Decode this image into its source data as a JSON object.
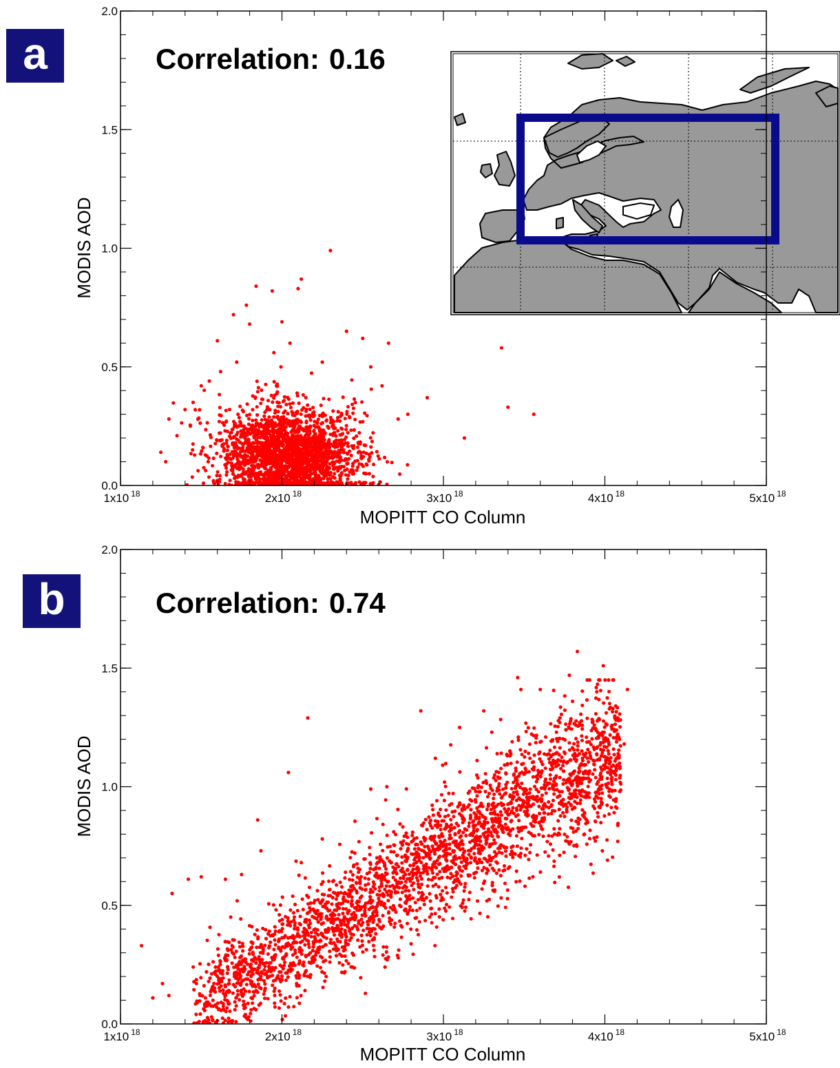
{
  "colors": {
    "points": "#ff0000",
    "label_bg": "#12127a",
    "land": "#999999",
    "region_box": "#0a0a8c"
  },
  "chart_data": [
    {
      "panel": "a",
      "type": "scatter",
      "panel_label": "a",
      "annotation_label": "Correlation:",
      "annotation_value": "0.16",
      "correlation": 0.16,
      "xlabel": "MOPITT CO Column",
      "ylabel": "MODIS AOD",
      "xlim": [
        1e+18,
        5e+18
      ],
      "ylim": [
        0.0,
        2.0
      ],
      "x_ticks": [
        {
          "value": 1e+18,
          "mantissa": "1x10",
          "exp": "18"
        },
        {
          "value": 2e+18,
          "mantissa": "2x10",
          "exp": "18"
        },
        {
          "value": 3e+18,
          "mantissa": "3x10",
          "exp": "18"
        },
        {
          "value": 4e+18,
          "mantissa": "4x10",
          "exp": "18"
        },
        {
          "value": 5e+18,
          "mantissa": "5x10",
          "exp": "18"
        }
      ],
      "y_ticks": [
        "0.0",
        "0.5",
        "1.0",
        "1.5",
        "2.0"
      ],
      "inset_map": {
        "description_region": "Europe",
        "region_box": true
      },
      "points": [
        [
          2.3e+18,
          0.99
        ],
        [
          1.84e+18,
          0.84
        ],
        [
          2.12e+18,
          0.87
        ],
        [
          1.94e+18,
          0.82
        ],
        [
          2.1e+18,
          0.83
        ],
        [
          1.7e+18,
          0.72
        ],
        [
          1.8e+18,
          0.68
        ],
        [
          1.78e+18,
          0.76
        ],
        [
          2e+18,
          0.69
        ],
        [
          1.6e+18,
          0.61
        ],
        [
          2.66e+18,
          0.6
        ],
        [
          3.36e+18,
          0.58
        ],
        [
          2.5e+18,
          0.62
        ],
        [
          2.05e+18,
          0.6
        ],
        [
          2.4e+18,
          0.65
        ],
        [
          1.55e+18,
          0.44
        ],
        [
          1.62e+18,
          0.48
        ],
        [
          1.72e+18,
          0.52
        ],
        [
          1.95e+18,
          0.56
        ],
        [
          2.25e+18,
          0.52
        ],
        [
          2.55e+18,
          0.5
        ],
        [
          2.62e+18,
          0.42
        ],
        [
          2.9e+18,
          0.37
        ],
        [
          3.4e+18,
          0.33
        ],
        [
          3.56e+18,
          0.3
        ],
        [
          3.13e+18,
          0.2
        ],
        [
          2.78e+18,
          0.3
        ],
        [
          2.72e+18,
          0.28
        ],
        [
          1.25e+18,
          0.14
        ],
        [
          1.28e+18,
          0.1
        ],
        [
          1.3e+18,
          0.28
        ],
        [
          1.35e+18,
          0.21
        ],
        [
          1.4e+18,
          0.32
        ],
        [
          1.45e+18,
          0.35
        ],
        [
          1.5e+18,
          0.42
        ]
      ],
      "cluster": {
        "center": [
          2.05e+18,
          0.13
        ],
        "spread": [
          2.2e+17,
          0.11
        ],
        "count": 2300,
        "seed": 7
      }
    },
    {
      "panel": "b",
      "type": "scatter",
      "panel_label": "b",
      "annotation_label": "Correlation:",
      "annotation_value": "0.74",
      "correlation": 0.74,
      "xlabel": "MOPITT CO Column",
      "ylabel": "MODIS AOD",
      "xlim": [
        1e+18,
        5e+18
      ],
      "ylim": [
        0.0,
        2.0
      ],
      "x_ticks": [
        {
          "value": 1e+18,
          "mantissa": "1x10",
          "exp": "18"
        },
        {
          "value": 2e+18,
          "mantissa": "2x10",
          "exp": "18"
        },
        {
          "value": 3e+18,
          "mantissa": "3x10",
          "exp": "18"
        },
        {
          "value": 4e+18,
          "mantissa": "4x10",
          "exp": "18"
        },
        {
          "value": 5e+18,
          "mantissa": "5x10",
          "exp": "18"
        }
      ],
      "y_ticks": [
        "0.0",
        "0.5",
        "1.0",
        "1.5",
        "2.0"
      ],
      "points": [
        [
          3.83e+18,
          1.57
        ],
        [
          3.99e+18,
          1.51
        ],
        [
          3.78e+18,
          1.47
        ],
        [
          3.46e+18,
          1.46
        ],
        [
          4.14e+18,
          1.41
        ],
        [
          3.48e+18,
          1.41
        ],
        [
          3.6e+18,
          1.41
        ],
        [
          3.8e+18,
          1.36
        ],
        [
          2.86e+18,
          1.32
        ],
        [
          3.25e+18,
          1.32
        ],
        [
          4.05e+18,
          1.33
        ],
        [
          2.16e+18,
          1.29
        ],
        [
          3.1e+18,
          1.25
        ],
        [
          2.04e+18,
          1.06
        ],
        [
          2.65e+18,
          1.0
        ],
        [
          2.55e+18,
          0.99
        ],
        [
          1.85e+18,
          0.86
        ],
        [
          2.25e+18,
          0.78
        ],
        [
          1.87e+18,
          0.73
        ],
        [
          2.12e+18,
          0.68
        ],
        [
          1.13e+18,
          0.33
        ],
        [
          1.2e+18,
          0.11
        ],
        [
          1.32e+18,
          0.55
        ],
        [
          1.42e+18,
          0.61
        ],
        [
          1.5e+18,
          0.62
        ],
        [
          1.65e+18,
          0.61
        ],
        [
          1.75e+18,
          0.63
        ],
        [
          3.95e+18,
          1.4
        ],
        [
          4.08e+18,
          1.29
        ],
        [
          4.12e+18,
          1.18
        ],
        [
          3.7e+18,
          1.23
        ],
        [
          3.3e+18,
          1.23
        ],
        [
          2.95e+18,
          1.12
        ],
        [
          1.3e+18,
          0.12
        ],
        [
          1.26e+18,
          0.17
        ]
      ],
      "trend": {
        "x_range": [
          1.45e+18,
          4.1e+18
        ],
        "slope_per_1e18": 0.42,
        "intercept_at_1e18": -0.55,
        "count": 2800,
        "seed": 11
      }
    }
  ]
}
